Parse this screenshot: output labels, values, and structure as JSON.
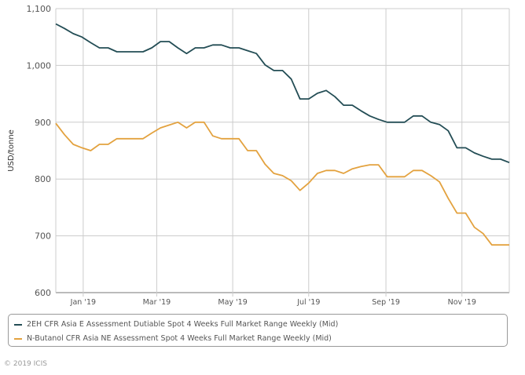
{
  "chart_data": {
    "type": "line",
    "title": "",
    "ylabel": "USD/tonne",
    "xlabel": "",
    "ylim": [
      600,
      1100
    ],
    "yticks": [
      600,
      700,
      800,
      900,
      1000,
      1100
    ],
    "ytick_labels": [
      "600",
      "700",
      "800",
      "900",
      "1,000",
      "1,100"
    ],
    "x_start": "2018-12-10",
    "x_interval_days": 7,
    "x_end": "2019-12-09",
    "xticks": [
      {
        "date": "2019-01-01",
        "label": "Jan '19"
      },
      {
        "date": "2019-03-01",
        "label": "Mar '19"
      },
      {
        "date": "2019-05-01",
        "label": "May '19"
      },
      {
        "date": "2019-07-01",
        "label": "Jul '19"
      },
      {
        "date": "2019-09-01",
        "label": "Sep '19"
      },
      {
        "date": "2019-11-01",
        "label": "Nov '19"
      }
    ],
    "grid": true,
    "legend_position": "bottom",
    "series": [
      {
        "name": "2EH CFR Asia E Assessment Dutiable Spot 4 Weeks Full Market Range Weekly (Mid)",
        "color": "#234d55",
        "values": [
          1073,
          1065,
          1056,
          1050,
          1040,
          1031,
          1031,
          1024,
          1024,
          1024,
          1024,
          1031,
          1042,
          1042,
          1031,
          1021,
          1031,
          1031,
          1036,
          1036,
          1031,
          1031,
          1026,
          1021,
          1001,
          991,
          991,
          976,
          941,
          941,
          951,
          956,
          945,
          930,
          930,
          920,
          911,
          905,
          900,
          900,
          900,
          911,
          911,
          900,
          896,
          885,
          855,
          855,
          846,
          840,
          835,
          835,
          829
        ]
      },
      {
        "name": "N-Butanol CFR Asia NE Assessment Spot 4 Weeks Full Market Range Weekly (Mid)",
        "color": "#e3a23f",
        "values": [
          898,
          878,
          861,
          855,
          850,
          861,
          861,
          871,
          871,
          871,
          871,
          881,
          890,
          895,
          900,
          890,
          900,
          900,
          876,
          871,
          871,
          871,
          850,
          850,
          826,
          810,
          806,
          797,
          780,
          793,
          810,
          815,
          815,
          810,
          818,
          822,
          825,
          825,
          804,
          804,
          804,
          815,
          815,
          806,
          795,
          766,
          740,
          740,
          715,
          704,
          684,
          684,
          684
        ]
      }
    ]
  },
  "footer": {
    "copyright": "© 2019 ICIS"
  }
}
